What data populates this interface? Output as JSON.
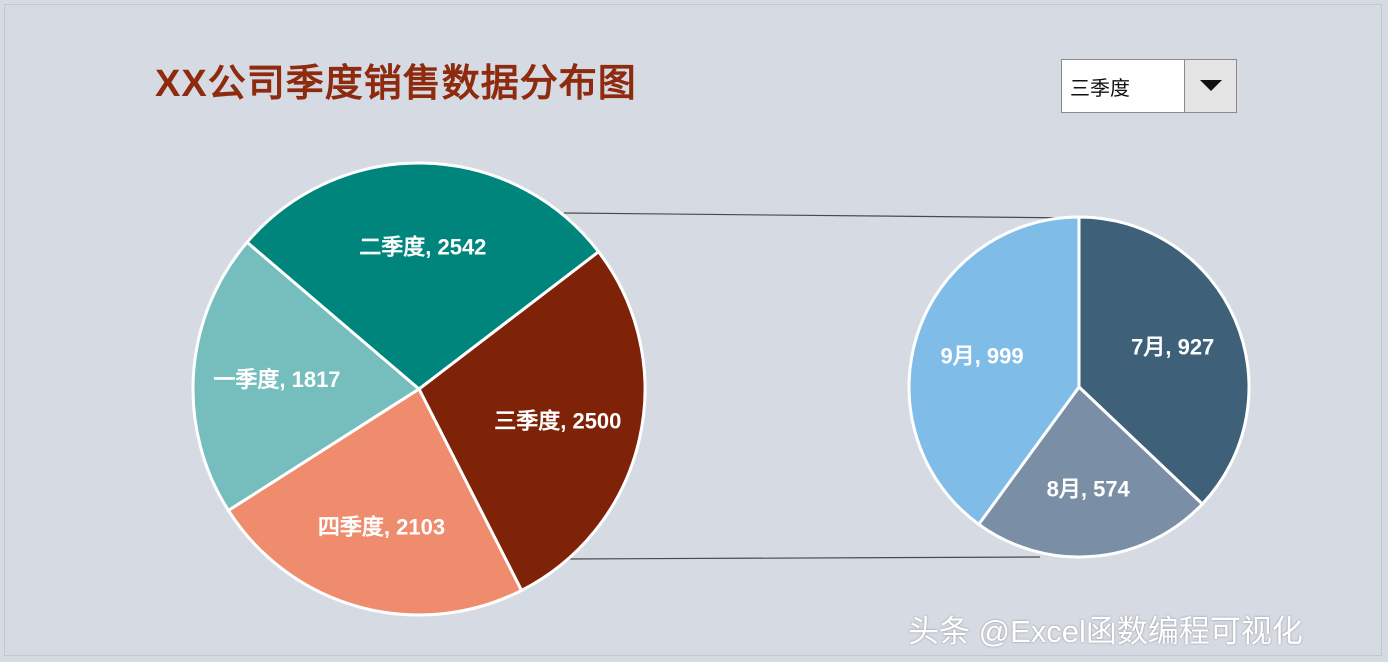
{
  "title": "XX公司季度销售数据分布图",
  "selector": {
    "selected": "三季度"
  },
  "watermark": "头条 @Excel函数编程可视化",
  "chart_data": [
    {
      "type": "pie",
      "title": "XX公司季度销售数据分布图",
      "slices": [
        {
          "label": "三季度",
          "value": 2500,
          "color": "#7e2208"
        },
        {
          "label": "四季度",
          "value": 2103,
          "color": "#ef8c6e"
        },
        {
          "label": "一季度",
          "value": 1817,
          "color": "#76bdbd"
        },
        {
          "label": "二季度",
          "value": 2542,
          "color": "#00857c"
        }
      ]
    },
    {
      "type": "pie",
      "title": "",
      "slices": [
        {
          "label": "7月",
          "value": 927,
          "color": "#3e6078"
        },
        {
          "label": "8月",
          "value": 574,
          "color": "#7a8fa6"
        },
        {
          "label": "9月",
          "value": 999,
          "color": "#7fbce8"
        }
      ]
    }
  ]
}
